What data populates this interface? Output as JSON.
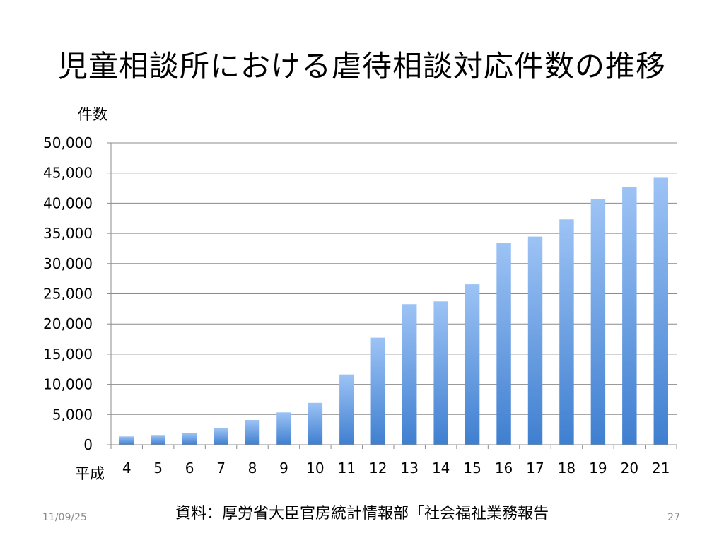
{
  "slide": {
    "title": "児童相談所における虐待相談対応件数の推移",
    "source": "資料：厚労省大臣官房統計情報部「社会福祉業務報告",
    "date": "11/09/25",
    "page_number": "27"
  },
  "chart_data": {
    "type": "bar",
    "ylabel": "件数",
    "xlabel": "平成",
    "categories": [
      "4",
      "5",
      "6",
      "7",
      "8",
      "9",
      "10",
      "11",
      "12",
      "13",
      "14",
      "15",
      "16",
      "17",
      "18",
      "19",
      "20",
      "21"
    ],
    "values": [
      1372,
      1611,
      1961,
      2722,
      4102,
      5352,
      6932,
      11631,
      17725,
      23274,
      23738,
      26569,
      33408,
      34472,
      37323,
      40639,
      42664,
      44211
    ],
    "ylim": [
      0,
      50000
    ],
    "yticks": [
      0,
      5000,
      10000,
      15000,
      20000,
      25000,
      30000,
      35000,
      40000,
      45000,
      50000
    ],
    "ytick_labels": [
      "0",
      "5,000",
      "10,000",
      "15,000",
      "20,000",
      "25,000",
      "30,000",
      "35,000",
      "40,000",
      "45,000",
      "50,000"
    ],
    "grid": true,
    "legend": "none",
    "bar_color_top": "#9dc3f5",
    "bar_color_bottom": "#3f7fd0"
  }
}
